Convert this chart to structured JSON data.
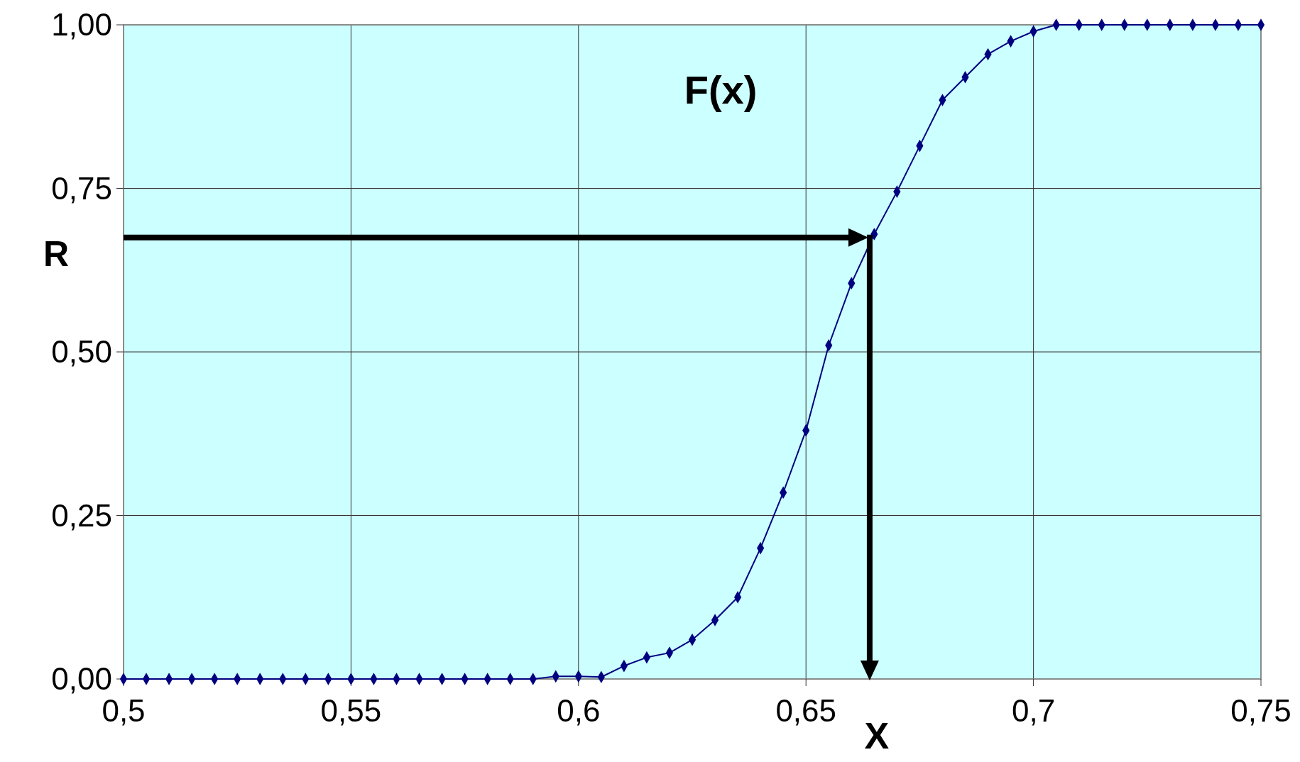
{
  "chart_data": {
    "type": "line",
    "x": [
      0.5,
      0.505,
      0.51,
      0.515,
      0.52,
      0.525,
      0.53,
      0.535,
      0.54,
      0.545,
      0.55,
      0.555,
      0.56,
      0.565,
      0.57,
      0.575,
      0.58,
      0.585,
      0.59,
      0.595,
      0.6,
      0.605,
      0.61,
      0.615,
      0.62,
      0.625,
      0.63,
      0.635,
      0.64,
      0.645,
      0.65,
      0.655,
      0.66,
      0.665,
      0.67,
      0.675,
      0.68,
      0.685,
      0.69,
      0.695,
      0.7,
      0.705,
      0.71,
      0.715,
      0.72,
      0.725,
      0.73,
      0.735,
      0.74,
      0.745,
      0.75
    ],
    "series": [
      {
        "color": "#000080",
        "values": [
          0,
          0,
          0,
          0,
          0,
          0,
          0,
          0,
          0,
          0,
          0,
          0,
          0,
          0,
          0,
          0,
          0,
          0,
          0,
          0.004,
          0.004,
          0.003,
          0.02,
          0.033,
          0.04,
          0.06,
          0.09,
          0.125,
          0.2,
          0.285,
          0.38,
          0.51,
          0.605,
          0.68,
          0.745,
          0.815,
          0.885,
          0.92,
          0.955,
          0.975,
          0.99,
          1,
          1,
          1,
          1,
          1,
          1,
          1,
          1,
          1,
          1
        ]
      }
    ],
    "xlim": [
      0.5,
      0.75
    ],
    "xticks": [
      {
        "value": 0.5,
        "label": "0,5"
      },
      {
        "value": 0.55,
        "label": "0,55"
      },
      {
        "value": 0.6,
        "label": "0,6"
      },
      {
        "value": 0.65,
        "label": "0,65"
      },
      {
        "value": 0.7,
        "label": "0,7"
      },
      {
        "value": 0.75,
        "label": "0,75"
      }
    ],
    "ylim": [
      0,
      1
    ],
    "yticks": [
      {
        "value": 0,
        "label": "0,00"
      },
      {
        "value": 0.25,
        "label": "0,25"
      },
      {
        "value": 0.5,
        "label": "0,50"
      },
      {
        "value": 0.75,
        "label": "0,75"
      },
      {
        "value": 1,
        "label": "1,00"
      }
    ],
    "grid": true,
    "marker": "diamond",
    "ref_lines": [
      {
        "axis": "y",
        "value": 0.675,
        "label": "R"
      },
      {
        "axis": "x",
        "value": 0.664,
        "label": "X"
      }
    ],
    "annotations": [
      "F(x)"
    ]
  }
}
